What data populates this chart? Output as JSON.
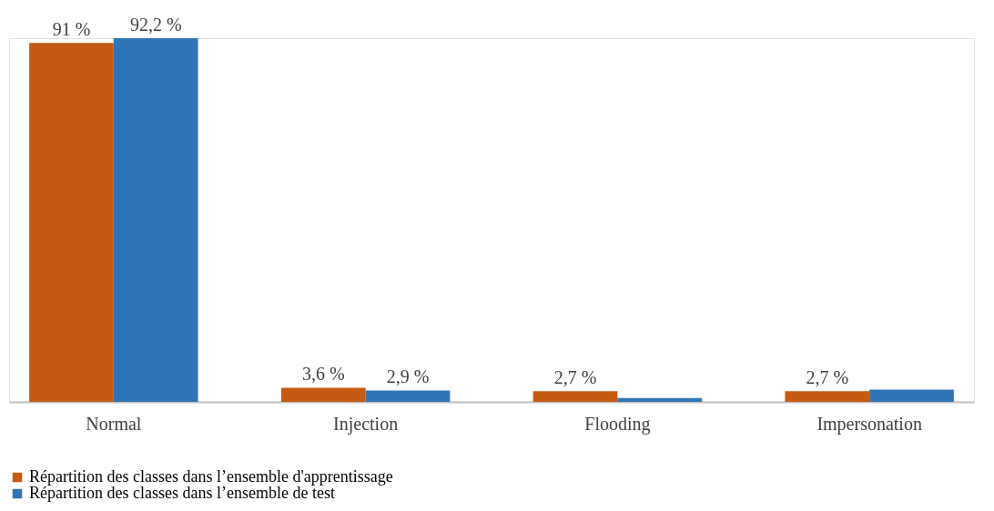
{
  "chart_data": {
    "type": "bar",
    "categories": [
      "Normal",
      "Injection",
      "Flooding",
      "Impersonation"
    ],
    "series": [
      {
        "name": "Répartition des classes dans l’ensemble d'apprentissage",
        "color": "#c55a11",
        "values": [
          91,
          3.6,
          2.7,
          2.7
        ],
        "value_labels": [
          "91 %",
          "3,6 %",
          "2,7 %",
          "2,7 %"
        ]
      },
      {
        "name": " Répartition des classes dans l’ensemble de test",
        "color": "#2e75b6",
        "values": [
          92.2,
          2.9,
          1.0,
          3.1
        ],
        "value_labels": [
          "92,2 %",
          "2,9 %",
          null,
          null
        ]
      }
    ],
    "ylim": [
      0,
      92.2
    ],
    "tick_labels": "x",
    "legend": "bottom",
    "grid": false
  }
}
